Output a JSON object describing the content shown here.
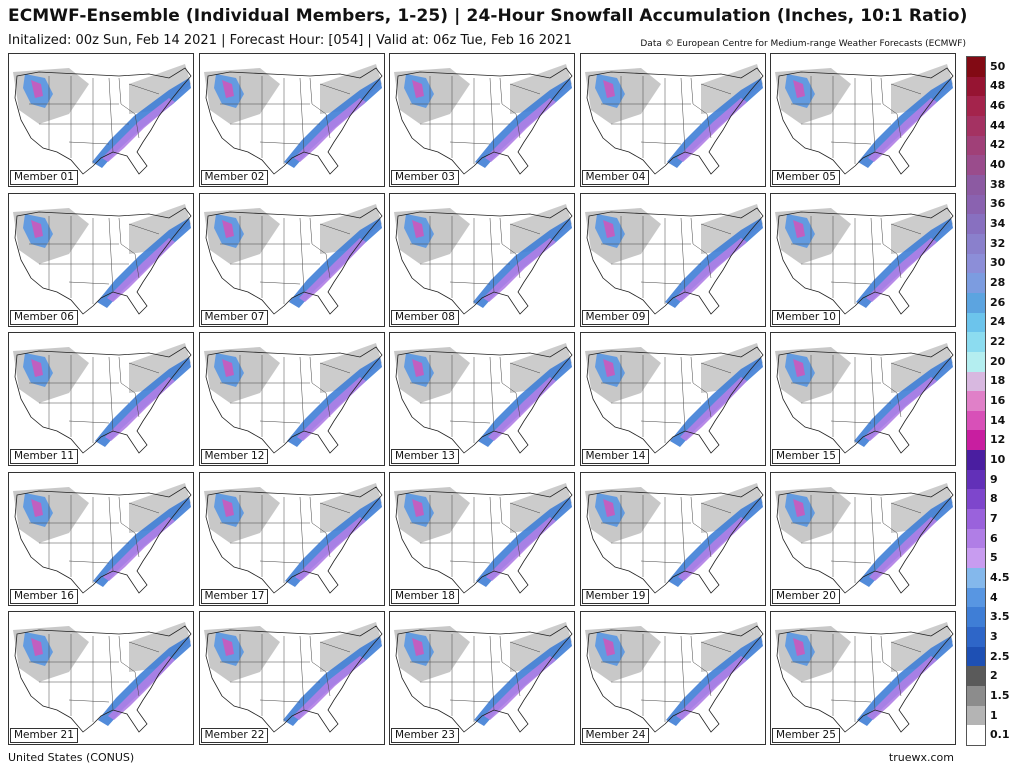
{
  "header": {
    "title": "ECMWF-Ensemble (Individual Members, 1-25) | 24-Hour Snowfall Accumulation (Inches, 10:1 Ratio)",
    "subtitle": "Initalized: 00z Sun, Feb 14 2021 | Forecast Hour: [054] | Valid at: 06z Tue, Feb 16 2021",
    "credit": "Data © European Centre for Medium-range Weather Forecasts (ECMWF)"
  },
  "members": [
    "Member 01",
    "Member 02",
    "Member 03",
    "Member 04",
    "Member 05",
    "Member 06",
    "Member 07",
    "Member 08",
    "Member 09",
    "Member 10",
    "Member 11",
    "Member 12",
    "Member 13",
    "Member 14",
    "Member 15",
    "Member 16",
    "Member 17",
    "Member 18",
    "Member 19",
    "Member 20",
    "Member 21",
    "Member 22",
    "Member 23",
    "Member 24",
    "Member 25"
  ],
  "legend": {
    "levels": [
      {
        "label": "0.1",
        "color": "#ffffff"
      },
      {
        "label": "1",
        "color": "#b4b4b4"
      },
      {
        "label": "1.5",
        "color": "#8c8c8c"
      },
      {
        "label": "2",
        "color": "#5a5a5a"
      },
      {
        "label": "2.5",
        "color": "#1e50b4"
      },
      {
        "label": "3",
        "color": "#2e66c8"
      },
      {
        "label": "3.5",
        "color": "#3f7ed6"
      },
      {
        "label": "4",
        "color": "#5896e2"
      },
      {
        "label": "4.5",
        "color": "#84b8ec"
      },
      {
        "label": "5",
        "color": "#c89cf0"
      },
      {
        "label": "6",
        "color": "#b07ee6"
      },
      {
        "label": "7",
        "color": "#9a62dc"
      },
      {
        "label": "8",
        "color": "#7e46cc"
      },
      {
        "label": "9",
        "color": "#6230b8"
      },
      {
        "label": "10",
        "color": "#4a1ea0"
      },
      {
        "label": "12",
        "color": "#c81ea0"
      },
      {
        "label": "14",
        "color": "#d850b8"
      },
      {
        "label": "16",
        "color": "#e080c8"
      },
      {
        "label": "18",
        "color": "#d8b8e0"
      },
      {
        "label": "20",
        "color": "#b4eef0"
      },
      {
        "label": "22",
        "color": "#8cdcf0"
      },
      {
        "label": "24",
        "color": "#6cc4ec"
      },
      {
        "label": "26",
        "color": "#5ca4e0"
      },
      {
        "label": "28",
        "color": "#7c9ce0"
      },
      {
        "label": "30",
        "color": "#8c8ed8"
      },
      {
        "label": "32",
        "color": "#8a80cc"
      },
      {
        "label": "34",
        "color": "#8870c0"
      },
      {
        "label": "36",
        "color": "#8a62b0"
      },
      {
        "label": "38",
        "color": "#8c5aa2"
      },
      {
        "label": "40",
        "color": "#9a4c8c"
      },
      {
        "label": "42",
        "color": "#a04078"
      },
      {
        "label": "44",
        "color": "#a43262"
      },
      {
        "label": "46",
        "color": "#a4244c"
      },
      {
        "label": "48",
        "color": "#961432"
      },
      {
        "label": "50",
        "color": "#820a14"
      }
    ]
  },
  "footer": {
    "region": "United States (CONUS)",
    "site": "truewx.com"
  }
}
